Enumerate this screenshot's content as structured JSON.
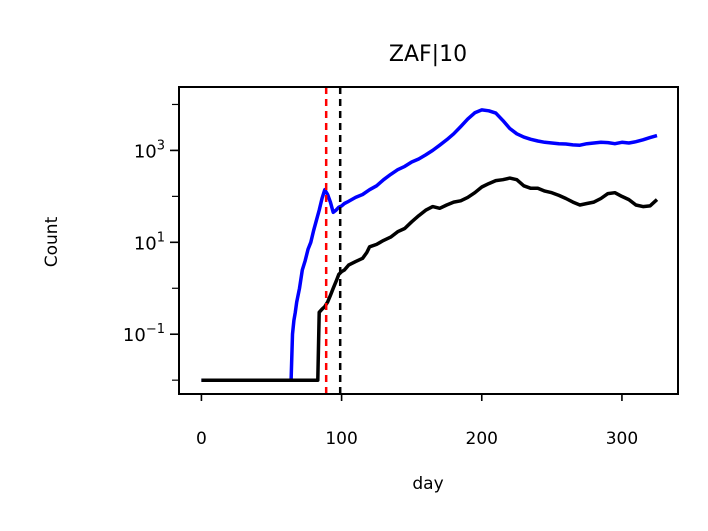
{
  "chart_data": {
    "type": "line",
    "title": "ZAF|10",
    "xlabel": "day",
    "ylabel": "Count",
    "xlim": [
      -16,
      340
    ],
    "x_ticks": [
      0,
      100,
      200,
      300
    ],
    "y_scale": "log",
    "ylim": [
      0.005,
      24000
    ],
    "y_ticks": [
      {
        "value": 0.1,
        "base": "10",
        "exp": "−1"
      },
      {
        "value": 10,
        "base": "10",
        "exp": "1"
      },
      {
        "value": 1000,
        "base": "10",
        "exp": "3"
      }
    ],
    "grid": false,
    "legend": "none",
    "vlines": [
      {
        "x": 89,
        "color": "#ff0000",
        "style": "dashed"
      },
      {
        "x": 99,
        "color": "#000000",
        "style": "dashed"
      }
    ],
    "series": [
      {
        "color": "#0000ff",
        "points": [
          [
            0,
            0.01
          ],
          [
            64,
            0.01
          ],
          [
            65,
            0.1
          ],
          [
            66,
            0.2
          ],
          [
            67,
            0.3
          ],
          [
            68,
            0.5
          ],
          [
            70,
            1.0
          ],
          [
            72,
            2.5
          ],
          [
            74,
            4
          ],
          [
            76,
            7
          ],
          [
            78,
            10
          ],
          [
            80,
            18
          ],
          [
            82,
            30
          ],
          [
            84,
            50
          ],
          [
            86,
            90
          ],
          [
            88,
            140
          ],
          [
            90,
            110
          ],
          [
            92,
            75
          ],
          [
            94,
            45
          ],
          [
            96,
            50
          ],
          [
            98,
            58
          ],
          [
            100,
            62
          ],
          [
            102,
            70
          ],
          [
            104,
            75
          ],
          [
            110,
            95
          ],
          [
            115,
            110
          ],
          [
            120,
            140
          ],
          [
            125,
            170
          ],
          [
            130,
            230
          ],
          [
            135,
            300
          ],
          [
            140,
            380
          ],
          [
            145,
            450
          ],
          [
            150,
            560
          ],
          [
            155,
            650
          ],
          [
            160,
            800
          ],
          [
            165,
            1000
          ],
          [
            170,
            1300
          ],
          [
            175,
            1700
          ],
          [
            180,
            2300
          ],
          [
            185,
            3300
          ],
          [
            190,
            4800
          ],
          [
            195,
            6600
          ],
          [
            200,
            7600
          ],
          [
            205,
            7300
          ],
          [
            210,
            6500
          ],
          [
            215,
            4500
          ],
          [
            220,
            3000
          ],
          [
            225,
            2300
          ],
          [
            230,
            1950
          ],
          [
            235,
            1750
          ],
          [
            240,
            1600
          ],
          [
            245,
            1500
          ],
          [
            250,
            1450
          ],
          [
            255,
            1400
          ],
          [
            260,
            1380
          ],
          [
            265,
            1320
          ],
          [
            270,
            1300
          ],
          [
            275,
            1400
          ],
          [
            280,
            1450
          ],
          [
            285,
            1500
          ],
          [
            290,
            1480
          ],
          [
            295,
            1400
          ],
          [
            300,
            1500
          ],
          [
            305,
            1450
          ],
          [
            310,
            1550
          ],
          [
            315,
            1700
          ],
          [
            320,
            1900
          ],
          [
            325,
            2100
          ]
        ]
      },
      {
        "color": "#000000",
        "points": [
          [
            0,
            0.01
          ],
          [
            83,
            0.01
          ],
          [
            84,
            0.3
          ],
          [
            86,
            0.35
          ],
          [
            88,
            0.4
          ],
          [
            90,
            0.5
          ],
          [
            92,
            0.7
          ],
          [
            94,
            1.0
          ],
          [
            96,
            1.4
          ],
          [
            98,
            2.0
          ],
          [
            100,
            2.3
          ],
          [
            102,
            2.5
          ],
          [
            105,
            3.2
          ],
          [
            110,
            3.8
          ],
          [
            115,
            4.5
          ],
          [
            118,
            6
          ],
          [
            120,
            8
          ],
          [
            125,
            9
          ],
          [
            130,
            11
          ],
          [
            135,
            13
          ],
          [
            140,
            17
          ],
          [
            145,
            20
          ],
          [
            150,
            28
          ],
          [
            155,
            38
          ],
          [
            160,
            50
          ],
          [
            165,
            60
          ],
          [
            170,
            55
          ],
          [
            175,
            65
          ],
          [
            180,
            75
          ],
          [
            185,
            80
          ],
          [
            190,
            95
          ],
          [
            195,
            120
          ],
          [
            200,
            160
          ],
          [
            205,
            190
          ],
          [
            210,
            220
          ],
          [
            215,
            230
          ],
          [
            220,
            250
          ],
          [
            225,
            230
          ],
          [
            230,
            170
          ],
          [
            235,
            150
          ],
          [
            240,
            150
          ],
          [
            245,
            130
          ],
          [
            250,
            120
          ],
          [
            255,
            105
          ],
          [
            260,
            90
          ],
          [
            265,
            75
          ],
          [
            270,
            65
          ],
          [
            275,
            70
          ],
          [
            280,
            75
          ],
          [
            285,
            90
          ],
          [
            290,
            115
          ],
          [
            295,
            120
          ],
          [
            300,
            100
          ],
          [
            305,
            85
          ],
          [
            310,
            65
          ],
          [
            315,
            60
          ],
          [
            320,
            62
          ],
          [
            325,
            85
          ]
        ]
      }
    ]
  }
}
